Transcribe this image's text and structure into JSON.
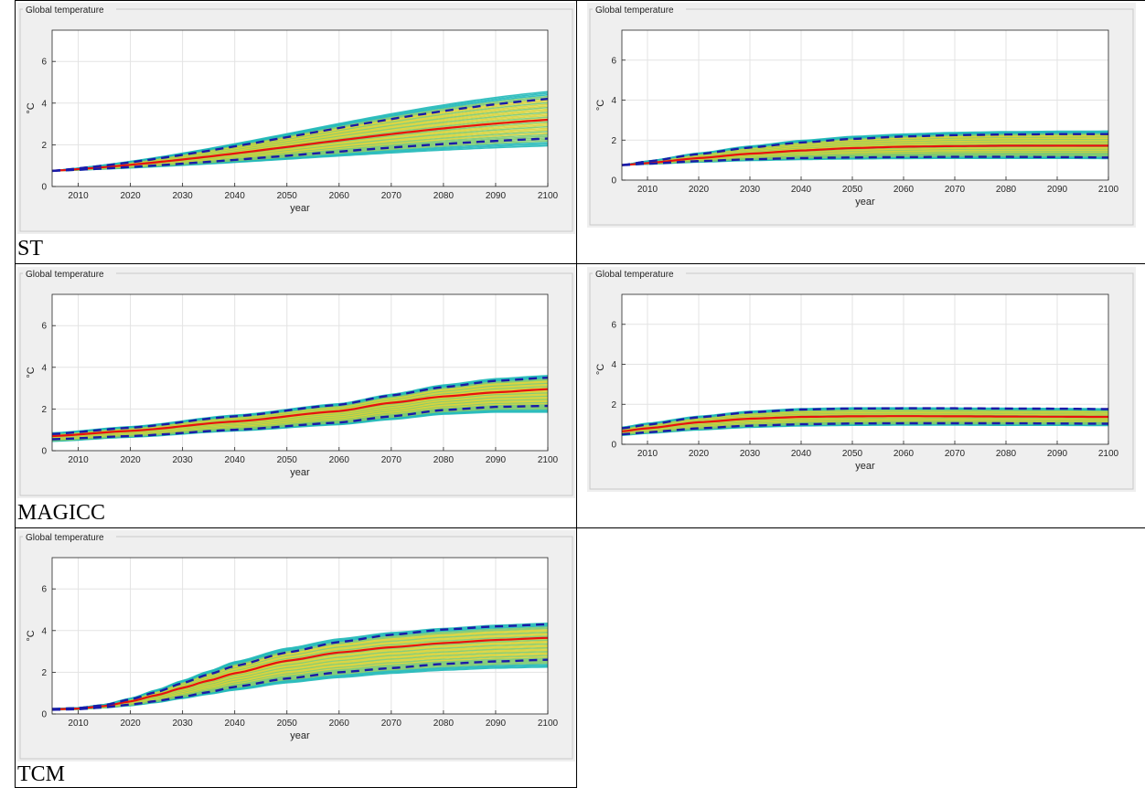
{
  "row_labels": [
    "ST",
    "MAGICC",
    "TCM"
  ],
  "chart_data": [
    {
      "type": "line",
      "title": "Global temperature",
      "xlabel": "year",
      "ylabel": "°C",
      "xlim": [
        2005,
        2100
      ],
      "ylim": [
        0,
        7.5
      ],
      "xticks": [
        2010,
        2020,
        2030,
        2040,
        2050,
        2060,
        2070,
        2080,
        2090,
        2100
      ],
      "yticks": [
        0,
        2,
        4,
        6
      ],
      "grid": true,
      "band_colors": [
        "#1fb8b8",
        "#7bc96f",
        "#d8d235",
        "#c7c21f"
      ],
      "series": [
        {
          "role": "ensemble-upper",
          "color": "#1fb8b8",
          "x": [
            2005,
            2100
          ],
          "y": [
            0.75,
            4.55
          ]
        },
        {
          "role": "ensemble-lower",
          "color": "#1fb8b8",
          "x": [
            2005,
            2100
          ],
          "y": [
            0.75,
            1.95
          ]
        },
        {
          "role": "median",
          "color": "#e8110e",
          "x": [
            2005,
            2100
          ],
          "y": [
            0.75,
            3.2
          ]
        },
        {
          "role": "upper-bound",
          "color": "#1a1aa8",
          "x": [
            2005,
            2100
          ],
          "y": [
            0.75,
            4.2
          ]
        },
        {
          "role": "lower-bound",
          "color": "#1a1aa8",
          "x": [
            2005,
            2100
          ],
          "y": [
            0.75,
            2.3
          ]
        }
      ]
    },
    {
      "type": "line",
      "title": "Global temperature",
      "xlabel": "year",
      "ylabel": "°C",
      "xlim": [
        2005,
        2100
      ],
      "ylim": [
        0,
        7.5
      ],
      "xticks": [
        2010,
        2020,
        2030,
        2040,
        2050,
        2060,
        2070,
        2080,
        2090,
        2100
      ],
      "yticks": [
        0,
        2,
        4,
        6
      ],
      "grid": true,
      "band_colors": [
        "#1fb8b8",
        "#7bc96f",
        "#d8d235",
        "#c7c21f"
      ],
      "series": [
        {
          "role": "ensemble-upper",
          "color": "#1fb8b8",
          "x": [
            2005,
            2010,
            2020,
            2030,
            2040,
            2050,
            2060,
            2070,
            2080,
            2090,
            2100
          ],
          "y": [
            0.75,
            0.95,
            1.35,
            1.7,
            1.98,
            2.18,
            2.3,
            2.38,
            2.42,
            2.44,
            2.45
          ]
        },
        {
          "role": "ensemble-lower",
          "color": "#1fb8b8",
          "x": [
            2005,
            2010,
            2020,
            2030,
            2040,
            2050,
            2060,
            2070,
            2080,
            2090,
            2100
          ],
          "y": [
            0.75,
            0.8,
            0.9,
            0.98,
            1.03,
            1.06,
            1.08,
            1.09,
            1.09,
            1.09,
            1.08
          ]
        },
        {
          "role": "median",
          "color": "#e8110e",
          "x": [
            2005,
            2010,
            2020,
            2030,
            2040,
            2050,
            2060,
            2070,
            2080,
            2090,
            2100
          ],
          "y": [
            0.75,
            0.85,
            1.1,
            1.32,
            1.48,
            1.6,
            1.67,
            1.7,
            1.72,
            1.72,
            1.72
          ]
        },
        {
          "role": "upper-bound",
          "color": "#1a1aa8",
          "x": [
            2005,
            2010,
            2020,
            2030,
            2040,
            2050,
            2060,
            2070,
            2080,
            2090,
            2100
          ],
          "y": [
            0.75,
            0.93,
            1.3,
            1.63,
            1.88,
            2.06,
            2.18,
            2.25,
            2.28,
            2.3,
            2.3
          ]
        },
        {
          "role": "lower-bound",
          "color": "#1a1aa8",
          "x": [
            2005,
            2010,
            2020,
            2030,
            2040,
            2050,
            2060,
            2070,
            2080,
            2090,
            2100
          ],
          "y": [
            0.75,
            0.82,
            0.95,
            1.04,
            1.1,
            1.13,
            1.15,
            1.16,
            1.16,
            1.15,
            1.13
          ]
        }
      ]
    },
    {
      "type": "line",
      "title": "Global temperature",
      "xlabel": "year",
      "ylabel": "°C",
      "xlim": [
        2005,
        2100
      ],
      "ylim": [
        0,
        7.5
      ],
      "xticks": [
        2010,
        2020,
        2030,
        2040,
        2050,
        2060,
        2070,
        2080,
        2090,
        2100
      ],
      "yticks": [
        0,
        2,
        4,
        6
      ],
      "grid": true,
      "band_colors": [
        "#1fb8b8",
        "#7bc96f",
        "#d8d235",
        "#c7c21f"
      ],
      "series": [
        {
          "role": "ensemble-upper",
          "color": "#1fb8b8",
          "x": [
            2005,
            2020,
            2040,
            2060,
            2070,
            2080,
            2090,
            2100
          ],
          "y": [
            0.85,
            1.15,
            1.7,
            2.25,
            2.7,
            3.15,
            3.45,
            3.6
          ]
        },
        {
          "role": "ensemble-lower",
          "color": "#1fb8b8",
          "x": [
            2005,
            2020,
            2040,
            2060,
            2070,
            2080,
            2090,
            2100
          ],
          "y": [
            0.45,
            0.65,
            0.95,
            1.25,
            1.5,
            1.75,
            1.85,
            1.85
          ]
        },
        {
          "role": "median",
          "color": "#e8110e",
          "x": [
            2005,
            2020,
            2040,
            2060,
            2070,
            2080,
            2090,
            2100
          ],
          "y": [
            0.7,
            0.95,
            1.4,
            1.9,
            2.3,
            2.6,
            2.8,
            2.95
          ]
        },
        {
          "role": "upper-bound",
          "color": "#1a1aa8",
          "x": [
            2005,
            2020,
            2040,
            2060,
            2070,
            2080,
            2090,
            2100
          ],
          "y": [
            0.8,
            1.1,
            1.65,
            2.2,
            2.65,
            3.05,
            3.35,
            3.5
          ]
        },
        {
          "role": "lower-bound",
          "color": "#1a1aa8",
          "x": [
            2005,
            2020,
            2040,
            2060,
            2070,
            2080,
            2090,
            2100
          ],
          "y": [
            0.55,
            0.7,
            1.0,
            1.35,
            1.65,
            1.95,
            2.1,
            2.15
          ]
        }
      ]
    },
    {
      "type": "line",
      "title": "Global temperature",
      "xlabel": "year",
      "ylabel": "°C",
      "xlim": [
        2005,
        2100
      ],
      "ylim": [
        0,
        7.5
      ],
      "xticks": [
        2010,
        2020,
        2030,
        2040,
        2050,
        2060,
        2070,
        2080,
        2090,
        2100
      ],
      "yticks": [
        0,
        2,
        4,
        6
      ],
      "grid": true,
      "band_colors": [
        "#1fb8b8",
        "#7bc96f",
        "#d8d235",
        "#c7c21f"
      ],
      "series": [
        {
          "role": "ensemble-upper",
          "color": "#1fb8b8",
          "x": [
            2005,
            2010,
            2020,
            2030,
            2040,
            2050,
            2060,
            2070,
            2080,
            2090,
            2100
          ],
          "y": [
            0.85,
            1.05,
            1.4,
            1.65,
            1.78,
            1.82,
            1.82,
            1.81,
            1.8,
            1.79,
            1.77
          ]
        },
        {
          "role": "ensemble-lower",
          "color": "#1fb8b8",
          "x": [
            2005,
            2010,
            2020,
            2030,
            2040,
            2050,
            2060,
            2070,
            2080,
            2090,
            2100
          ],
          "y": [
            0.45,
            0.55,
            0.72,
            0.85,
            0.92,
            0.95,
            0.96,
            0.96,
            0.95,
            0.95,
            0.94
          ]
        },
        {
          "role": "median",
          "color": "#e8110e",
          "x": [
            2005,
            2010,
            2020,
            2030,
            2040,
            2050,
            2060,
            2070,
            2080,
            2090,
            2100
          ],
          "y": [
            0.65,
            0.8,
            1.1,
            1.28,
            1.37,
            1.4,
            1.41,
            1.4,
            1.39,
            1.38,
            1.37
          ]
        },
        {
          "role": "upper-bound",
          "color": "#1a1aa8",
          "x": [
            2005,
            2010,
            2020,
            2030,
            2040,
            2050,
            2060,
            2070,
            2080,
            2090,
            2100
          ],
          "y": [
            0.8,
            0.98,
            1.35,
            1.6,
            1.74,
            1.79,
            1.8,
            1.8,
            1.79,
            1.78,
            1.76
          ]
        },
        {
          "role": "lower-bound",
          "color": "#1a1aa8",
          "x": [
            2005,
            2010,
            2020,
            2030,
            2040,
            2050,
            2060,
            2070,
            2080,
            2090,
            2100
          ],
          "y": [
            0.5,
            0.6,
            0.8,
            0.93,
            1.0,
            1.04,
            1.05,
            1.05,
            1.05,
            1.04,
            1.03
          ]
        }
      ]
    },
    {
      "type": "line",
      "title": "Global temperature",
      "xlabel": "year",
      "ylabel": "°C",
      "xlim": [
        2005,
        2100
      ],
      "ylim": [
        0,
        7.5
      ],
      "xticks": [
        2010,
        2020,
        2030,
        2040,
        2050,
        2060,
        2070,
        2080,
        2090,
        2100
      ],
      "yticks": [
        0,
        2,
        4,
        6
      ],
      "grid": true,
      "band_colors": [
        "#1fb8b8",
        "#7bc96f",
        "#d8d235",
        "#c7c21f"
      ],
      "series": [
        {
          "role": "ensemble-upper",
          "color": "#1fb8b8",
          "x": [
            2005,
            2010,
            2015,
            2020,
            2025,
            2030,
            2035,
            2040,
            2050,
            2060,
            2070,
            2080,
            2090,
            2100
          ],
          "y": [
            0.25,
            0.3,
            0.45,
            0.75,
            1.15,
            1.6,
            2.05,
            2.5,
            3.15,
            3.6,
            3.9,
            4.1,
            4.25,
            4.35
          ]
        },
        {
          "role": "ensemble-lower",
          "color": "#1fb8b8",
          "x": [
            2005,
            2010,
            2015,
            2020,
            2025,
            2030,
            2035,
            2040,
            2050,
            2060,
            2070,
            2080,
            2090,
            2100
          ],
          "y": [
            0.2,
            0.22,
            0.3,
            0.4,
            0.55,
            0.75,
            0.95,
            1.15,
            1.5,
            1.75,
            1.95,
            2.1,
            2.2,
            2.25
          ]
        },
        {
          "role": "median",
          "color": "#e8110e",
          "x": [
            2005,
            2010,
            2015,
            2020,
            2025,
            2030,
            2035,
            2040,
            2050,
            2060,
            2070,
            2080,
            2090,
            2100
          ],
          "y": [
            0.22,
            0.26,
            0.38,
            0.6,
            0.9,
            1.25,
            1.6,
            1.95,
            2.55,
            2.95,
            3.2,
            3.4,
            3.55,
            3.65
          ]
        },
        {
          "role": "upper-bound",
          "color": "#1a1aa8",
          "x": [
            2005,
            2010,
            2015,
            2020,
            2025,
            2030,
            2035,
            2040,
            2050,
            2060,
            2070,
            2080,
            2090,
            2100
          ],
          "y": [
            0.24,
            0.28,
            0.42,
            0.7,
            1.05,
            1.48,
            1.9,
            2.3,
            2.95,
            3.45,
            3.8,
            4.05,
            4.2,
            4.3
          ]
        },
        {
          "role": "lower-bound",
          "color": "#1a1aa8",
          "x": [
            2005,
            2010,
            2015,
            2020,
            2025,
            2030,
            2035,
            2040,
            2050,
            2060,
            2070,
            2080,
            2090,
            2100
          ],
          "y": [
            0.2,
            0.23,
            0.32,
            0.45,
            0.62,
            0.82,
            1.05,
            1.3,
            1.7,
            2.0,
            2.2,
            2.4,
            2.52,
            2.6
          ]
        }
      ]
    }
  ]
}
